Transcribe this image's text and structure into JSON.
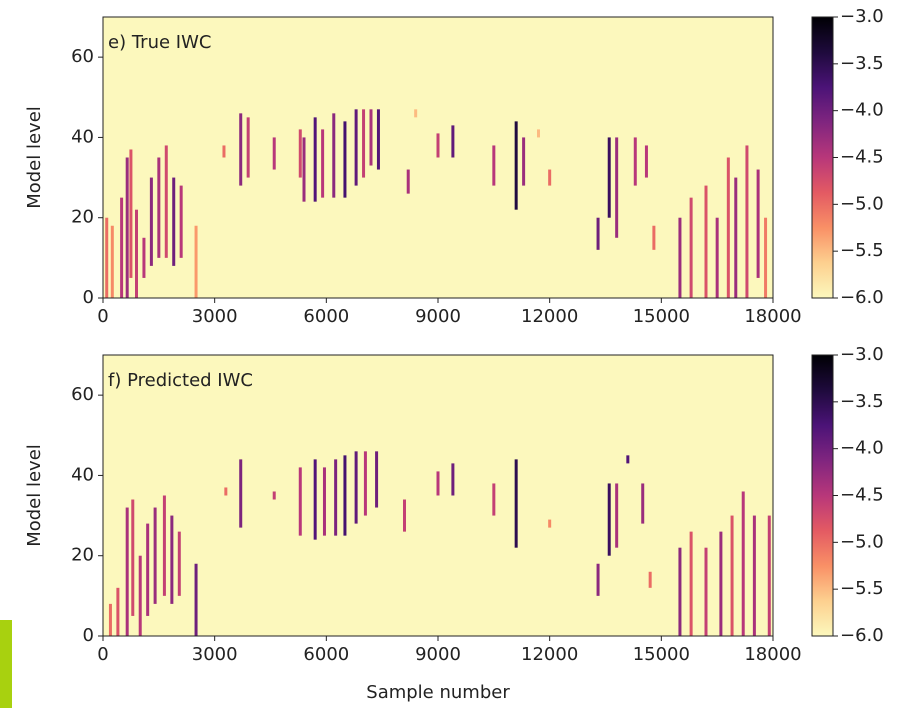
{
  "chart_data": [
    {
      "type": "heatmap",
      "title": "e) True IWC",
      "ylabel": "Model level",
      "xlim": [
        0,
        18000
      ],
      "ylim": [
        0,
        70
      ],
      "xticks": [
        0,
        3000,
        6000,
        9000,
        12000,
        15000,
        18000
      ],
      "yticks": [
        0,
        20,
        40,
        60
      ],
      "colormap": "magma_r",
      "clim": [
        -6,
        -3
      ],
      "cticks": [
        {
          "value": -3,
          "label": "−3.0"
        },
        {
          "value": -3.5,
          "label": "−3.5"
        },
        {
          "value": -4,
          "label": "−4.0"
        },
        {
          "value": -4.5,
          "label": "−4.5"
        },
        {
          "value": -5,
          "label": "−5.0"
        },
        {
          "value": -5.5,
          "label": "−5.5"
        },
        {
          "value": -6,
          "label": "−6.0"
        }
      ],
      "streaks": [
        {
          "x": 100,
          "bottom": 0,
          "top": 20,
          "value": -5
        },
        {
          "x": 250,
          "bottom": 0,
          "top": 18,
          "value": -5.2
        },
        {
          "x": 500,
          "bottom": 0,
          "top": 25,
          "value": -4.5
        },
        {
          "x": 650,
          "bottom": 0,
          "top": 35,
          "value": -4.3
        },
        {
          "x": 750,
          "bottom": 5,
          "top": 37,
          "value": -4.8
        },
        {
          "x": 900,
          "bottom": 0,
          "top": 22,
          "value": -4.6
        },
        {
          "x": 1100,
          "bottom": 5,
          "top": 15,
          "value": -4.5
        },
        {
          "x": 1300,
          "bottom": 8,
          "top": 30,
          "value": -4.2
        },
        {
          "x": 1500,
          "bottom": 10,
          "top": 35,
          "value": -4.4
        },
        {
          "x": 1700,
          "bottom": 10,
          "top": 38,
          "value": -4.7
        },
        {
          "x": 1900,
          "bottom": 8,
          "top": 30,
          "value": -4.0
        },
        {
          "x": 2100,
          "bottom": 10,
          "top": 28,
          "value": -4.5
        },
        {
          "x": 2500,
          "bottom": 0,
          "top": 18,
          "value": -5.3
        },
        {
          "x": 3250,
          "bottom": 35,
          "top": 38,
          "value": -5
        },
        {
          "x": 3700,
          "bottom": 28,
          "top": 46,
          "value": -4.2
        },
        {
          "x": 3900,
          "bottom": 30,
          "top": 45,
          "value": -4.6
        },
        {
          "x": 4600,
          "bottom": 32,
          "top": 40,
          "value": -4.5
        },
        {
          "x": 5300,
          "bottom": 30,
          "top": 42,
          "value": -4.7
        },
        {
          "x": 5400,
          "bottom": 24,
          "top": 40,
          "value": -4.3
        },
        {
          "x": 5700,
          "bottom": 24,
          "top": 45,
          "value": -3.8
        },
        {
          "x": 5900,
          "bottom": 25,
          "top": 42,
          "value": -4.5
        },
        {
          "x": 6200,
          "bottom": 25,
          "top": 46,
          "value": -4.2
        },
        {
          "x": 6500,
          "bottom": 25,
          "top": 44,
          "value": -3.7
        },
        {
          "x": 6800,
          "bottom": 28,
          "top": 47,
          "value": -3.9
        },
        {
          "x": 7000,
          "bottom": 30,
          "top": 47,
          "value": -4.6
        },
        {
          "x": 7200,
          "bottom": 33,
          "top": 47,
          "value": -4.4
        },
        {
          "x": 7400,
          "bottom": 32,
          "top": 47,
          "value": -3.8
        },
        {
          "x": 8200,
          "bottom": 26,
          "top": 32,
          "value": -4.4
        },
        {
          "x": 8400,
          "bottom": 45,
          "top": 47,
          "value": -5.5
        },
        {
          "x": 9000,
          "bottom": 35,
          "top": 41,
          "value": -4.6
        },
        {
          "x": 9400,
          "bottom": 35,
          "top": 43,
          "value": -3.9
        },
        {
          "x": 10500,
          "bottom": 28,
          "top": 38,
          "value": -4.5
        },
        {
          "x": 11100,
          "bottom": 22,
          "top": 44,
          "value": -3.4
        },
        {
          "x": 11300,
          "bottom": 28,
          "top": 40,
          "value": -4.3
        },
        {
          "x": 11700,
          "bottom": 40,
          "top": 42,
          "value": -5.5
        },
        {
          "x": 12000,
          "bottom": 28,
          "top": 32,
          "value": -5
        },
        {
          "x": 13300,
          "bottom": 12,
          "top": 20,
          "value": -4
        },
        {
          "x": 13600,
          "bottom": 20,
          "top": 40,
          "value": -3.6
        },
        {
          "x": 13800,
          "bottom": 15,
          "top": 40,
          "value": -4.3
        },
        {
          "x": 14300,
          "bottom": 28,
          "top": 40,
          "value": -4.5
        },
        {
          "x": 14600,
          "bottom": 30,
          "top": 38,
          "value": -4.5
        },
        {
          "x": 14800,
          "bottom": 12,
          "top": 18,
          "value": -5
        },
        {
          "x": 15500,
          "bottom": 0,
          "top": 20,
          "value": -4.3
        },
        {
          "x": 15800,
          "bottom": 0,
          "top": 25,
          "value": -4.7
        },
        {
          "x": 16200,
          "bottom": 0,
          "top": 28,
          "value": -4.8
        },
        {
          "x": 16500,
          "bottom": 0,
          "top": 20,
          "value": -4.4
        },
        {
          "x": 16800,
          "bottom": 0,
          "top": 35,
          "value": -4.8
        },
        {
          "x": 17000,
          "bottom": 0,
          "top": 30,
          "value": -4.3
        },
        {
          "x": 17300,
          "bottom": 0,
          "top": 38,
          "value": -4.7
        },
        {
          "x": 17600,
          "bottom": 5,
          "top": 32,
          "value": -4.4
        },
        {
          "x": 17800,
          "bottom": 0,
          "top": 20,
          "value": -5.1
        }
      ]
    },
    {
      "type": "heatmap",
      "title": "f) Predicted IWC",
      "xlabel": "Sample number",
      "ylabel": "Model level",
      "xlim": [
        0,
        18000
      ],
      "ylim": [
        0,
        70
      ],
      "xticks": [
        0,
        3000,
        6000,
        9000,
        12000,
        15000,
        18000
      ],
      "yticks": [
        0,
        20,
        40,
        60
      ],
      "colormap": "magma_r",
      "clim": [
        -6,
        -3
      ],
      "cticks": [
        {
          "value": -3,
          "label": "−3.0"
        },
        {
          "value": -3.5,
          "label": "−3.5"
        },
        {
          "value": -4,
          "label": "−4.0"
        },
        {
          "value": -4.5,
          "label": "−4.5"
        },
        {
          "value": -5,
          "label": "−5.0"
        },
        {
          "value": -5.5,
          "label": "−5.5"
        },
        {
          "value": -6,
          "label": "−6.0"
        }
      ],
      "streaks": [
        {
          "x": 200,
          "bottom": 0,
          "top": 8,
          "value": -5
        },
        {
          "x": 400,
          "bottom": 0,
          "top": 12,
          "value": -4.8
        },
        {
          "x": 650,
          "bottom": 0,
          "top": 32,
          "value": -4.4
        },
        {
          "x": 800,
          "bottom": 5,
          "top": 34,
          "value": -4.7
        },
        {
          "x": 1000,
          "bottom": 0,
          "top": 20,
          "value": -4.5
        },
        {
          "x": 1200,
          "bottom": 5,
          "top": 28,
          "value": -4.4
        },
        {
          "x": 1400,
          "bottom": 8,
          "top": 32,
          "value": -4.3
        },
        {
          "x": 1650,
          "bottom": 10,
          "top": 35,
          "value": -4.6
        },
        {
          "x": 1850,
          "bottom": 8,
          "top": 30,
          "value": -4.2
        },
        {
          "x": 2050,
          "bottom": 10,
          "top": 26,
          "value": -4.6
        },
        {
          "x": 2500,
          "bottom": 0,
          "top": 18,
          "value": -4.0
        },
        {
          "x": 3300,
          "bottom": 35,
          "top": 37,
          "value": -5
        },
        {
          "x": 3700,
          "bottom": 27,
          "top": 44,
          "value": -4.1
        },
        {
          "x": 4600,
          "bottom": 34,
          "top": 36,
          "value": -4.6
        },
        {
          "x": 5300,
          "bottom": 25,
          "top": 42,
          "value": -4.5
        },
        {
          "x": 5700,
          "bottom": 24,
          "top": 44,
          "value": -3.8
        },
        {
          "x": 5950,
          "bottom": 25,
          "top": 42,
          "value": -4.4
        },
        {
          "x": 6250,
          "bottom": 25,
          "top": 44,
          "value": -4.1
        },
        {
          "x": 6500,
          "bottom": 25,
          "top": 45,
          "value": -3.7
        },
        {
          "x": 6800,
          "bottom": 28,
          "top": 46,
          "value": -3.9
        },
        {
          "x": 7050,
          "bottom": 30,
          "top": 46,
          "value": -4.5
        },
        {
          "x": 7350,
          "bottom": 32,
          "top": 46,
          "value": -4.0
        },
        {
          "x": 8100,
          "bottom": 26,
          "top": 34,
          "value": -4.6
        },
        {
          "x": 9000,
          "bottom": 35,
          "top": 41,
          "value": -4.5
        },
        {
          "x": 9400,
          "bottom": 35,
          "top": 43,
          "value": -4.0
        },
        {
          "x": 10500,
          "bottom": 30,
          "top": 38,
          "value": -4.6
        },
        {
          "x": 11100,
          "bottom": 22,
          "top": 44,
          "value": -3.5
        },
        {
          "x": 12000,
          "bottom": 27,
          "top": 29,
          "value": -5.2
        },
        {
          "x": 13300,
          "bottom": 10,
          "top": 18,
          "value": -4.2
        },
        {
          "x": 13600,
          "bottom": 20,
          "top": 38,
          "value": -3.6
        },
        {
          "x": 13800,
          "bottom": 22,
          "top": 38,
          "value": -4.4
        },
        {
          "x": 14100,
          "bottom": 43,
          "top": 45,
          "value": -3.8
        },
        {
          "x": 14500,
          "bottom": 28,
          "top": 38,
          "value": -4.3
        },
        {
          "x": 14700,
          "bottom": 12,
          "top": 16,
          "value": -5
        },
        {
          "x": 15500,
          "bottom": 0,
          "top": 22,
          "value": -4.2
        },
        {
          "x": 15800,
          "bottom": 0,
          "top": 26,
          "value": -4.8
        },
        {
          "x": 16200,
          "bottom": 0,
          "top": 22,
          "value": -4.6
        },
        {
          "x": 16600,
          "bottom": 0,
          "top": 26,
          "value": -4.3
        },
        {
          "x": 16900,
          "bottom": 0,
          "top": 30,
          "value": -4.8
        },
        {
          "x": 17200,
          "bottom": 0,
          "top": 36,
          "value": -4.5
        },
        {
          "x": 17500,
          "bottom": 0,
          "top": 30,
          "value": -4.4
        },
        {
          "x": 17900,
          "bottom": 0,
          "top": 30,
          "value": -4.6
        }
      ]
    }
  ]
}
